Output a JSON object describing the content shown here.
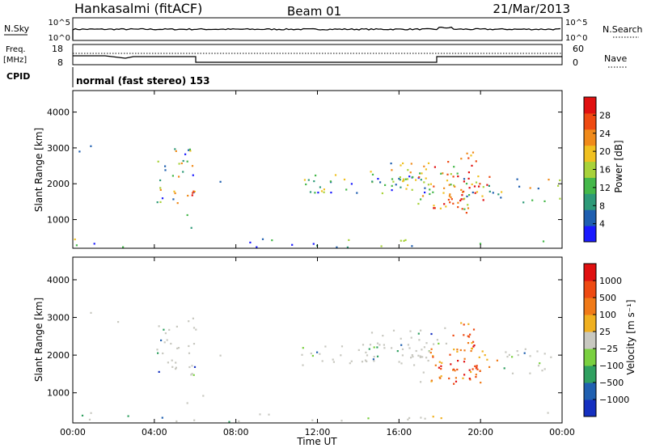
{
  "header": {
    "title": "Hankasalmi (fitACF)",
    "beam": "Beam 01",
    "date": "21/Mar/2013"
  },
  "top_panels": {
    "nsky_label": "N.Sky",
    "nsearch_label": "N.Search",
    "nsky_ticks": [
      "10^5",
      "10^0"
    ],
    "freq_label_line1": "Freq.",
    "freq_label_line2": "[MHz]",
    "freq_ticks": [
      "18",
      "8"
    ],
    "nave_label": "Nave",
    "nave_ticks": [
      "60",
      "0"
    ],
    "cpid_label": "CPID",
    "cpid_text": "normal (fast stereo) 153"
  },
  "chart_data": [
    {
      "type": "heatmap",
      "name": "power",
      "xlabel": "",
      "ylabel": "Slant Range [km]",
      "xlim": [
        0,
        24
      ],
      "ylim": [
        200,
        4600
      ],
      "yticks": [
        1000,
        2000,
        3000,
        4000
      ],
      "colorbar_label": "Power [dB]",
      "colorbar_ticks": [
        "4",
        "8",
        "12",
        "16",
        "20",
        "24",
        "28"
      ],
      "colorbar_colors": [
        "#1a1aff",
        "#1f5fb0",
        "#2e9a78",
        "#45b84a",
        "#a8d23a",
        "#f0c020",
        "#f08a1a",
        "#ee4a12",
        "#e01010"
      ]
    },
    {
      "type": "heatmap",
      "name": "velocity",
      "xlabel": "Time UT",
      "ylabel": "Slant Range [km]",
      "xlim": [
        0,
        24
      ],
      "ylim": [
        200,
        4600
      ],
      "yticks": [
        1000,
        2000,
        3000,
        4000
      ],
      "xticks": [
        "00:00",
        "04:00",
        "08:00",
        "12:00",
        "16:00",
        "20:00",
        "00:00"
      ],
      "colorbar_label": "Velocity [m s⁻¹]",
      "colorbar_ticks": [
        "1000",
        "500",
        "100",
        "25",
        "−25",
        "−100",
        "−500",
        "−1000"
      ],
      "colorbar_colors": [
        "#1530c0",
        "#2060b0",
        "#30a060",
        "#7ad040",
        "#c8c8c0",
        "#f0b020",
        "#f07a18",
        "#ee4a12",
        "#e01010"
      ]
    }
  ]
}
